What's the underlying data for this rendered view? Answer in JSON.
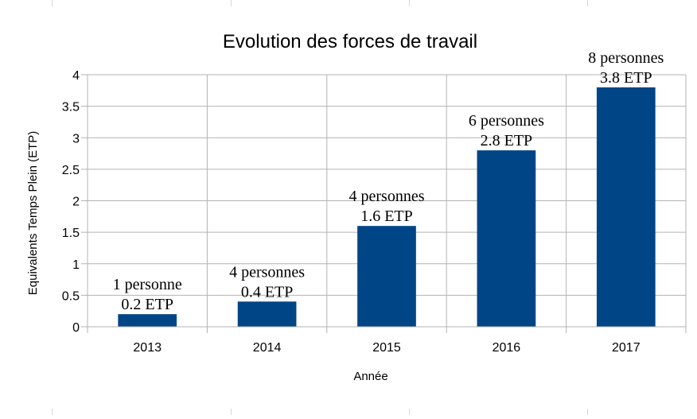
{
  "chart_data": {
    "type": "bar",
    "title": "Evolution des forces de travail",
    "xlabel": "Année",
    "ylabel": "Equivalents Temps Plein (ETP)",
    "categories": [
      "2013",
      "2014",
      "2015",
      "2016",
      "2017"
    ],
    "values": [
      0.2,
      0.4,
      1.6,
      2.8,
      3.8
    ],
    "data_labels": [
      {
        "line1": "1 personne",
        "line2": "0.2 ETP"
      },
      {
        "line1": "4 personnes",
        "line2": "0.4 ETP"
      },
      {
        "line1": "4 personnes",
        "line2": "1.6 ETP"
      },
      {
        "line1": "6 personnes",
        "line2": "2.8 ETP"
      },
      {
        "line1": "8 personnes",
        "line2": "3.8 ETP"
      }
    ],
    "ylim": [
      0,
      4
    ],
    "yticks": [
      "0",
      "0.5",
      "1",
      "1.5",
      "2",
      "2.5",
      "3",
      "3.5",
      "4"
    ],
    "grid": true,
    "legend": "none",
    "colors": {
      "bar": "#004586",
      "grid": "#b3b3b3",
      "text": "#000000"
    }
  }
}
